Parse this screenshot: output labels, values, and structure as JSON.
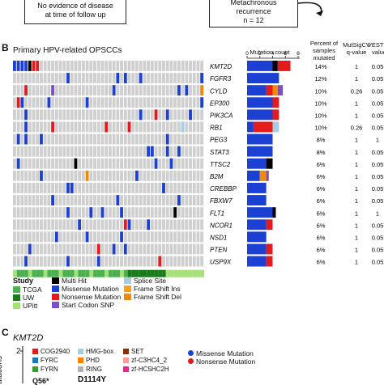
{
  "top": {
    "left_box": {
      "line1": "No evidence of disease",
      "line2": "at time of follow up"
    },
    "right_box": {
      "line1": "Metachronous",
      "line2": "recurrence",
      "line3": "n = 12"
    }
  },
  "panel_b": {
    "letter": "B",
    "title": "Primary HPV-related OPSCCs",
    "headers": {
      "mutation_count": "Mutation count",
      "percent": "Percent of samples mutated",
      "mutsig": "MutSigCV q-value",
      "vest": "VEST q-value"
    },
    "axis_ticks": [
      "0",
      "2",
      "4",
      "6",
      "8"
    ]
  },
  "legend": {
    "study_title": "Study",
    "study_items": [
      {
        "label": "TCGA",
        "color": "#4caf50"
      },
      {
        "label": "UW",
        "color": "#1b7a1b"
      },
      {
        "label": "UPitt",
        "color": "#a6e07a"
      }
    ],
    "mut_items": [
      {
        "label": "Multi Hit",
        "color": "#000000"
      },
      {
        "label": "Missense Mutation",
        "color": "#1c3fd4"
      },
      {
        "label": "Nonsense Mutation",
        "color": "#e41a1c"
      },
      {
        "label": "Start Codon SNP",
        "color": "#7b4fc9"
      },
      {
        "label": "Splice Site",
        "color": "#a6cee3"
      },
      {
        "label": "Frame Shift Ins",
        "color": "#ff9f1a"
      },
      {
        "label": "Frame Shift Del",
        "color": "#f28a00"
      }
    ]
  },
  "panel_c": {
    "letter": "C",
    "gene": "KMT2D",
    "ylabel": "utations",
    "ytick": "2",
    "domains": [
      {
        "label": "COG2940",
        "color": "#e41a1c"
      },
      {
        "label": "FYRC",
        "color": "#1f78b4"
      },
      {
        "label": "FYRN",
        "color": "#33a02c"
      },
      {
        "label": "HMG-box",
        "color": "#a6cee3"
      },
      {
        "label": "PHD",
        "color": "#ff7f00"
      },
      {
        "label": "RING",
        "color": "#b2b2b2"
      },
      {
        "label": "SET",
        "color": "#8c2d04"
      },
      {
        "label": "zf-C3HC4_2",
        "color": "#fb9a99"
      },
      {
        "label": "zf-HC5HC2H",
        "color": "#e7298a"
      }
    ],
    "dot_legend": [
      {
        "label": "Missense Mutation",
        "color": "#1c3fd4"
      },
      {
        "label": "Nonsense Mutation",
        "color": "#e41a1c"
      }
    ],
    "annot_left": "Q56*",
    "annot_right": "D1114Y"
  },
  "chart_data": {
    "type": "bar",
    "categories": [
      "KMT2D",
      "FGFR3",
      "CYLD",
      "EP300",
      "PIK3CA",
      "RB1",
      "PEG3",
      "STAT3",
      "TTSC2",
      "B2M",
      "CREBBP",
      "FBXW7",
      "FLT1",
      "NCOR1",
      "NSD1",
      "PTEN",
      "USP9X"
    ],
    "series": [
      {
        "name": "Missense Mutation",
        "values": [
          4,
          5,
          3,
          4,
          4,
          1,
          4,
          4,
          3,
          2,
          3,
          3,
          4,
          3,
          3,
          3,
          3
        ]
      },
      {
        "name": "Multi Hit",
        "values": [
          0.8,
          0,
          0,
          0,
          0,
          0,
          0,
          0,
          1,
          0,
          0,
          0,
          0.5,
          0,
          0,
          0,
          0
        ]
      },
      {
        "name": "Nonsense Mutation",
        "values": [
          2,
          0,
          1,
          1,
          1,
          3,
          0,
          0,
          0,
          0,
          0,
          0,
          0,
          1,
          0,
          1,
          1
        ]
      },
      {
        "name": "Frame Shift Del",
        "values": [
          0,
          0,
          0.8,
          0,
          0,
          0,
          0,
          0,
          0,
          1,
          0,
          0,
          0,
          0,
          0,
          0,
          0
        ]
      },
      {
        "name": "Start Codon SNP",
        "values": [
          0,
          0,
          0.8,
          0,
          0,
          0,
          0,
          0,
          0,
          0.4,
          0,
          0,
          0,
          0,
          0,
          0,
          0
        ]
      },
      {
        "name": "Splice Site",
        "values": [
          0,
          0,
          0,
          0,
          0,
          1,
          0,
          0,
          0,
          0,
          0,
          0,
          0,
          0,
          0,
          0,
          0
        ]
      }
    ],
    "percent": [
      "14%",
      "12%",
      "10%",
      "10%",
      "10%",
      "10%",
      "8%",
      "8%",
      "6%",
      "6%",
      "6%",
      "6%",
      "6%",
      "6%",
      "6%",
      "6%",
      "6%"
    ],
    "mutsig_q": [
      "1",
      "1",
      "0.26",
      "1",
      "1",
      "0.26",
      "1",
      "1",
      "1",
      "1",
      "1",
      "1",
      "1",
      "1",
      "1",
      "1",
      "1"
    ],
    "vest_q": [
      "0.05",
      "0.05",
      "0.05",
      "0.05",
      "0.05",
      "0.05",
      "1",
      "0.05",
      "0.05",
      "0.05",
      "0.05",
      "0.05",
      "1",
      "0.05",
      "0.05",
      "0.05",
      "0.05"
    ],
    "xlim": [
      0,
      8
    ]
  }
}
